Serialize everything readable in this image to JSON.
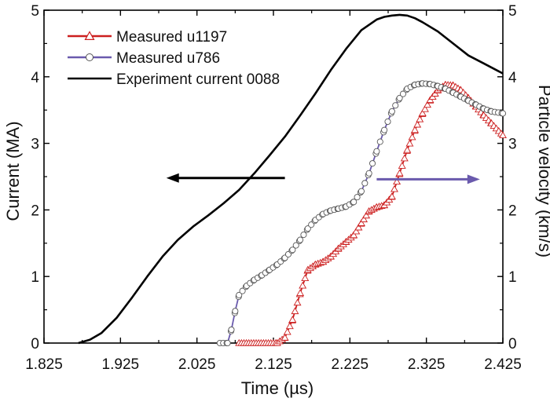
{
  "chart_data": {
    "type": "line",
    "title": "",
    "xlabel": "Time (µs)",
    "ylabel_left": "Current (MA)",
    "ylabel_right": "Particle velocity (km/s)",
    "xlim": [
      1.825,
      2.425
    ],
    "ylim_left": [
      0,
      5
    ],
    "ylim_right": [
      0,
      5
    ],
    "x_ticks": [
      "1.825",
      "1.925",
      "2.025",
      "2.125",
      "2.225",
      "2.325",
      "2.425"
    ],
    "y_ticks_left": [
      "0",
      "1",
      "2",
      "3",
      "4",
      "5"
    ],
    "y_ticks_right": [
      "0",
      "1",
      "2",
      "3",
      "4",
      "5"
    ],
    "grid": false,
    "legend_position": "top-left",
    "series": [
      {
        "name": "Measured u1197",
        "axis": "right",
        "color": "#cc1f1f",
        "marker": "triangle-up",
        "x": [
          2.08,
          2.13,
          2.14,
          2.15,
          2.16,
          2.17,
          2.18,
          2.19,
          2.2,
          2.21,
          2.22,
          2.23,
          2.24,
          2.25,
          2.26,
          2.27,
          2.28,
          2.29,
          2.3,
          2.31,
          2.32,
          2.33,
          2.34,
          2.35,
          2.36,
          2.37,
          2.38,
          2.39,
          2.4,
          2.41,
          2.425
        ],
        "y": [
          0,
          0,
          0.08,
          0.35,
          0.75,
          1.1,
          1.18,
          1.22,
          1.3,
          1.42,
          1.52,
          1.62,
          1.8,
          1.98,
          2.04,
          2.07,
          2.2,
          2.55,
          2.9,
          3.2,
          3.45,
          3.65,
          3.8,
          3.88,
          3.87,
          3.8,
          3.68,
          3.55,
          3.42,
          3.3,
          3.12
        ]
      },
      {
        "name": "Measured u786",
        "axis": "right",
        "color": "#6a5aad",
        "marker": "circle",
        "x": [
          2.055,
          2.065,
          2.07,
          2.075,
          2.08,
          2.09,
          2.1,
          2.11,
          2.12,
          2.13,
          2.14,
          2.15,
          2.16,
          2.17,
          2.18,
          2.19,
          2.2,
          2.21,
          2.22,
          2.23,
          2.24,
          2.25,
          2.26,
          2.27,
          2.28,
          2.29,
          2.3,
          2.31,
          2.32,
          2.33,
          2.34,
          2.35,
          2.36,
          2.37,
          2.38,
          2.39,
          2.4,
          2.41,
          2.425
        ],
        "y": [
          0,
          0,
          0.2,
          0.48,
          0.72,
          0.86,
          0.95,
          1.02,
          1.1,
          1.18,
          1.28,
          1.4,
          1.55,
          1.72,
          1.85,
          1.94,
          1.99,
          2.02,
          2.05,
          2.12,
          2.28,
          2.55,
          2.88,
          3.2,
          3.48,
          3.68,
          3.82,
          3.88,
          3.9,
          3.89,
          3.86,
          3.82,
          3.76,
          3.7,
          3.64,
          3.58,
          3.52,
          3.48,
          3.45
        ]
      },
      {
        "name": "Experiment current 0088",
        "axis": "left",
        "color": "#000000",
        "marker": "none",
        "x": [
          1.87,
          1.885,
          1.9,
          1.92,
          1.94,
          1.96,
          1.98,
          2.0,
          2.02,
          2.04,
          2.06,
          2.08,
          2.1,
          2.12,
          2.14,
          2.16,
          2.18,
          2.2,
          2.22,
          2.24,
          2.26,
          2.27,
          2.28,
          2.29,
          2.3,
          2.31,
          2.32,
          2.34,
          2.36,
          2.38,
          2.4,
          2.425
        ],
        "y": [
          0,
          0.05,
          0.15,
          0.38,
          0.68,
          1.0,
          1.3,
          1.55,
          1.75,
          1.92,
          2.1,
          2.3,
          2.55,
          2.82,
          3.1,
          3.42,
          3.75,
          4.1,
          4.42,
          4.7,
          4.86,
          4.9,
          4.92,
          4.93,
          4.92,
          4.88,
          4.82,
          4.68,
          4.5,
          4.32,
          4.2,
          4.05
        ]
      }
    ],
    "annotations": [
      {
        "type": "arrow",
        "direction": "left",
        "color": "#000000",
        "y": 2.48,
        "x_from": 2.14,
        "x_to": 1.985,
        "axis": "left"
      },
      {
        "type": "arrow",
        "direction": "right",
        "color": "#6a5aad",
        "y": 2.46,
        "x_from": 2.26,
        "x_to": 2.395,
        "axis": "right"
      }
    ]
  }
}
